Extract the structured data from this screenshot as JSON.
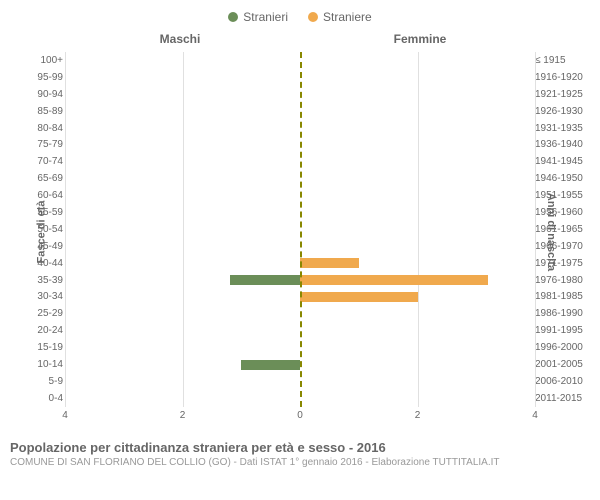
{
  "legend": {
    "male": {
      "label": "Stranieri",
      "color": "#6b8e58"
    },
    "female": {
      "label": "Straniere",
      "color": "#f0a94d"
    }
  },
  "headers": {
    "left": "Maschi",
    "right": "Femmine"
  },
  "axis": {
    "left_label": "Fasce di età",
    "right_label": "Anni di nascita",
    "xmax": 4,
    "xticks_left": [
      4,
      2,
      0
    ],
    "xticks_right": [
      0,
      2,
      4
    ]
  },
  "chart": {
    "type": "population-pyramid",
    "background_color": "#ffffff",
    "grid_color": "#e0e0e0",
    "center_line_color": "#888800",
    "bar_male_color": "#6b8e58",
    "bar_female_color": "#f0a94d",
    "tick_fontsize": 10,
    "label_fontsize": 11
  },
  "rows": [
    {
      "age": "100+",
      "birth": "≤ 1915",
      "m": 0,
      "f": 0
    },
    {
      "age": "95-99",
      "birth": "1916-1920",
      "m": 0,
      "f": 0
    },
    {
      "age": "90-94",
      "birth": "1921-1925",
      "m": 0,
      "f": 0
    },
    {
      "age": "85-89",
      "birth": "1926-1930",
      "m": 0,
      "f": 0
    },
    {
      "age": "80-84",
      "birth": "1931-1935",
      "m": 0,
      "f": 0
    },
    {
      "age": "75-79",
      "birth": "1936-1940",
      "m": 0,
      "f": 0
    },
    {
      "age": "70-74",
      "birth": "1941-1945",
      "m": 0,
      "f": 0
    },
    {
      "age": "65-69",
      "birth": "1946-1950",
      "m": 0,
      "f": 0
    },
    {
      "age": "60-64",
      "birth": "1951-1955",
      "m": 0,
      "f": 0
    },
    {
      "age": "55-59",
      "birth": "1956-1960",
      "m": 0,
      "f": 0
    },
    {
      "age": "50-54",
      "birth": "1961-1965",
      "m": 0,
      "f": 0
    },
    {
      "age": "45-49",
      "birth": "1966-1970",
      "m": 0,
      "f": 0
    },
    {
      "age": "40-44",
      "birth": "1971-1975",
      "m": 0,
      "f": 1
    },
    {
      "age": "35-39",
      "birth": "1976-1980",
      "m": 1.2,
      "f": 3.2
    },
    {
      "age": "30-34",
      "birth": "1981-1985",
      "m": 0,
      "f": 2
    },
    {
      "age": "25-29",
      "birth": "1986-1990",
      "m": 0,
      "f": 0
    },
    {
      "age": "20-24",
      "birth": "1991-1995",
      "m": 0,
      "f": 0
    },
    {
      "age": "15-19",
      "birth": "1996-2000",
      "m": 0,
      "f": 0
    },
    {
      "age": "10-14",
      "birth": "2001-2005",
      "m": 1,
      "f": 0
    },
    {
      "age": "5-9",
      "birth": "2006-2010",
      "m": 0,
      "f": 0
    },
    {
      "age": "0-4",
      "birth": "2011-2015",
      "m": 0,
      "f": 0
    }
  ],
  "title": "Popolazione per cittadinanza straniera per età e sesso - 2016",
  "subtitle": "COMUNE DI SAN FLORIANO DEL COLLIO (GO) - Dati ISTAT 1° gennaio 2016 - Elaborazione TUTTITALIA.IT"
}
